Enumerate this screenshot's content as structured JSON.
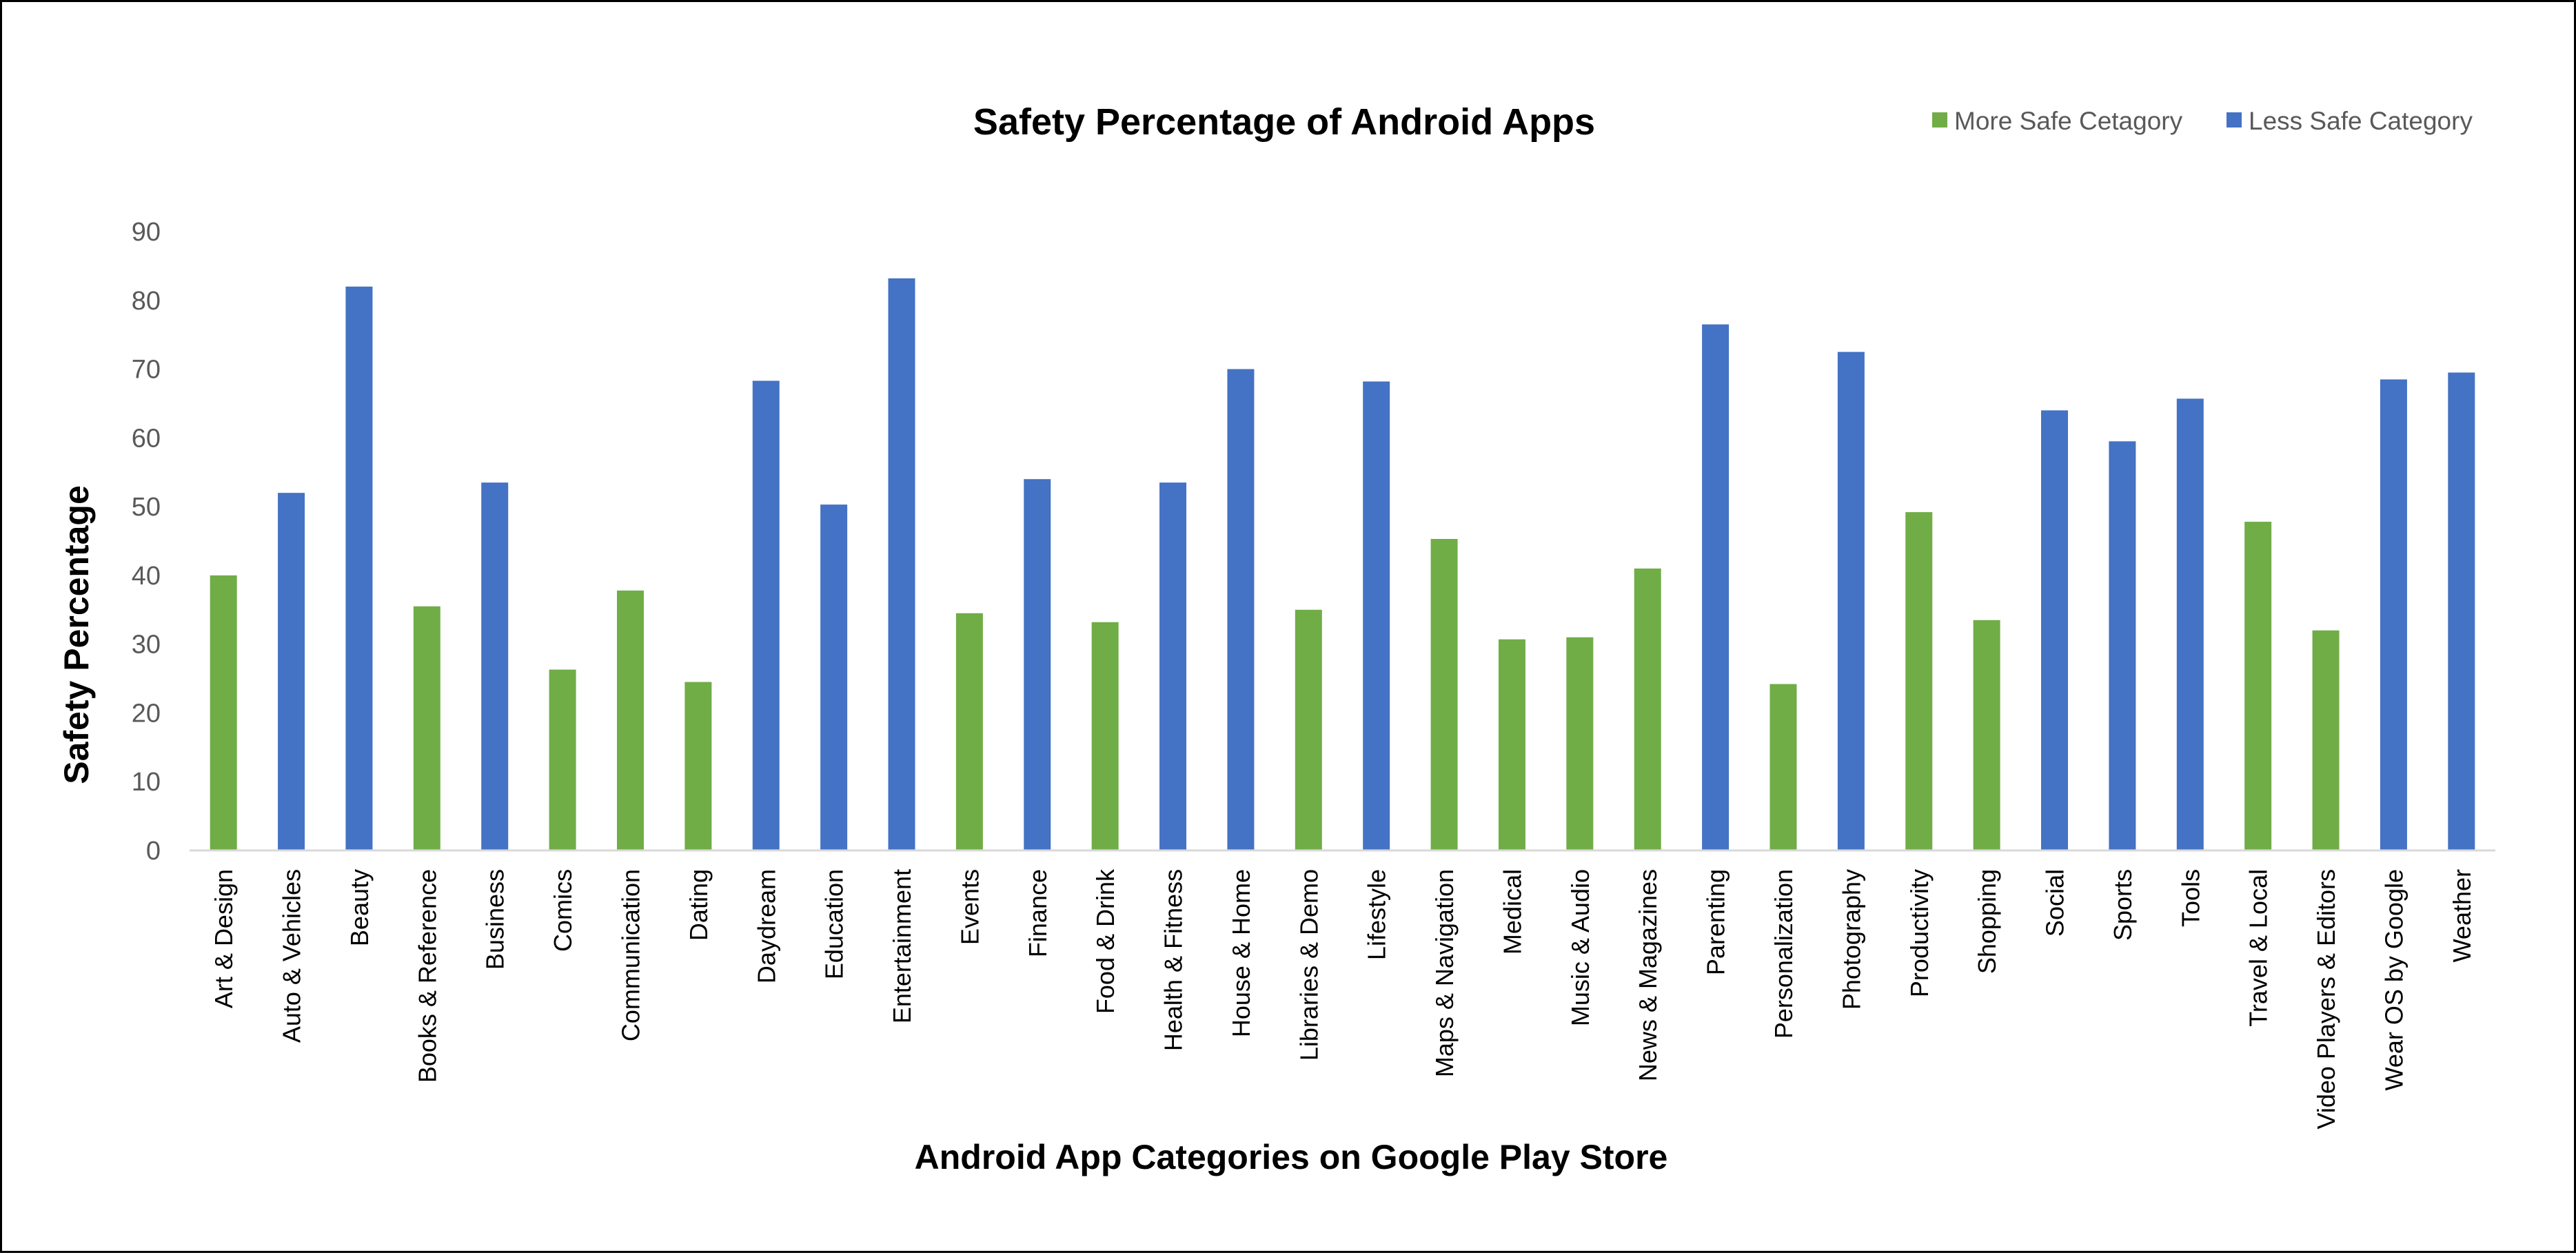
{
  "chart_data": {
    "type": "bar",
    "title": "Safety Percentage of Android Apps",
    "xlabel": "Android App Categories on Google Play Store",
    "ylabel": "Safety Percentage",
    "ylim": [
      0,
      90
    ],
    "yticks": [
      0,
      10,
      20,
      30,
      40,
      50,
      60,
      70,
      80,
      90
    ],
    "grid": false,
    "legend_position": "top-right",
    "legend": [
      {
        "name": "More Safe Cetagory",
        "color": "#70ad47"
      },
      {
        "name": "Less Safe Category",
        "color": "#4472c4"
      }
    ],
    "categories": [
      "Art & Design",
      "Auto & Vehicles",
      "Beauty",
      "Books & Reference",
      "Business",
      "Comics",
      "Communication",
      "Dating",
      "Daydream",
      "Education",
      "Entertainment",
      "Events",
      "Finance",
      "Food & Drink",
      "Health & Fitness",
      "House & Home",
      "Libraries & Demo",
      "Lifestyle",
      "Maps & Navigation",
      "Medical",
      "Music & Audio",
      "News & Magazines",
      "Parenting",
      "Personalization",
      "Photography",
      "Productivity",
      "Shopping",
      "Social",
      "Sports",
      "Tools",
      "Travel & Local",
      "Video Players & Editors",
      "Wear OS by Google",
      "Weather"
    ],
    "values": [
      40,
      52,
      82,
      35.5,
      53.5,
      26.3,
      37.8,
      24.5,
      68.3,
      50.3,
      83.2,
      34.5,
      54,
      33.2,
      53.5,
      70,
      35,
      68.2,
      45.3,
      30.7,
      31,
      41,
      76.5,
      24.2,
      72.5,
      49.2,
      33.5,
      64,
      59.5,
      65.7,
      47.8,
      32,
      68.5,
      69.5
    ],
    "safety_class": [
      "more",
      "less",
      "less",
      "more",
      "less",
      "more",
      "more",
      "more",
      "less",
      "less",
      "less",
      "more",
      "less",
      "more",
      "less",
      "less",
      "more",
      "less",
      "more",
      "more",
      "more",
      "more",
      "less",
      "more",
      "less",
      "more",
      "more",
      "less",
      "less",
      "less",
      "more",
      "more",
      "less",
      "less"
    ]
  }
}
